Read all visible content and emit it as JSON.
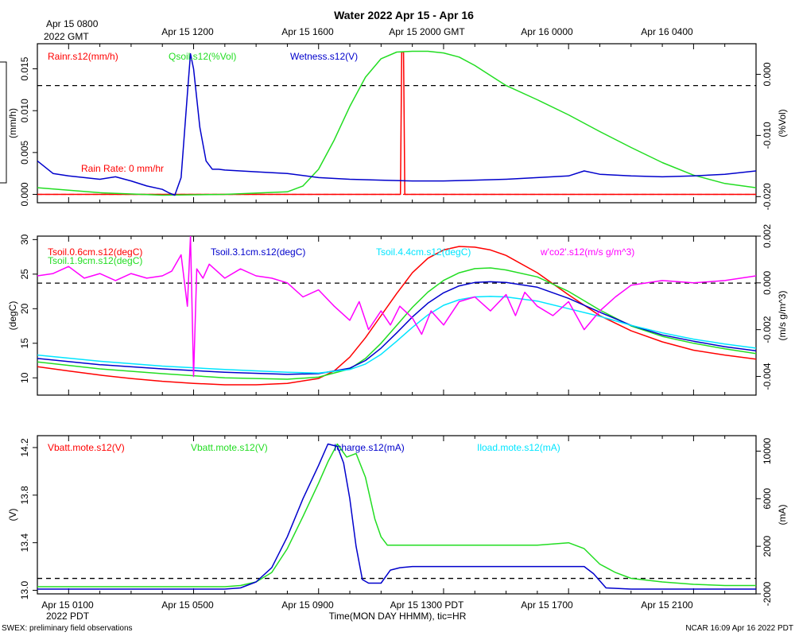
{
  "title": "Water 2022 Apr 15 - Apr 16",
  "footer": {
    "left": "SWEX: preliminary field observations",
    "right": "NCAR 16:09 Apr 16 2022 PDT",
    "xlabel": "Time(MON DAY HHMM), tic=HR",
    "year_bottom": "2022 PDT"
  },
  "top_axis": {
    "first_label": "Apr 15 0800",
    "year_label": "2022 GMT",
    "labels": [
      "Apr 15 1200",
      "Apr 15 1600",
      "Apr 15 2000 GMT",
      "Apr 16 0000",
      "Apr 16 0400"
    ]
  },
  "bottom_axis": {
    "labels": [
      "Apr 15 0100",
      "Apr 15 0500",
      "Apr 15 0900",
      "Apr 15 1300 PDT",
      "Apr 15 1700",
      "Apr 15 2100"
    ]
  },
  "colors": {
    "red": "#ff0000",
    "green": "#22dd22",
    "blue": "#0000cc",
    "cyan": "#00e5ff",
    "magenta": "#ff00ff"
  },
  "chart_data": [
    {
      "type": "line",
      "panel": "top",
      "x_unit": "hours since Apr 15 00:00 PDT",
      "xlim": [
        0,
        23
      ],
      "left_axis": {
        "label": "(mm/h)",
        "ylim": [
          -0.001,
          0.018
        ],
        "ticks": [
          0.0,
          0.005,
          0.01,
          0.015
        ],
        "tick_labels": [
          "0.000",
          "0.005",
          "0.010",
          "0.015"
        ]
      },
      "right_axis": {
        "label": "(%Vol)",
        "ylim": [
          -0.021,
          0.005
        ],
        "ticks": [
          0.0,
          -0.01,
          -0.02
        ],
        "tick_labels": [
          "0.000",
          "-0.010",
          "-0.020"
        ]
      },
      "reference_line_left": 0.013,
      "annotation": "Rain Rate: 0 mm/hr",
      "series": [
        {
          "name": "Rainr.s12(mm/h)",
          "color": "red",
          "axis": "left",
          "x": [
            0,
            11.62,
            11.66,
            11.72,
            11.76,
            23
          ],
          "values": [
            0,
            0,
            0.017,
            0.017,
            0,
            0
          ]
        },
        {
          "name": "Qsoil.s12(%Vol)",
          "color": "green",
          "axis": "left",
          "x": [
            0,
            2,
            4,
            6,
            8,
            8.5,
            9,
            9.5,
            10,
            10.5,
            11,
            11.5,
            12,
            12.5,
            13,
            13.5,
            14,
            14.5,
            15,
            16,
            17,
            18,
            19,
            20,
            21,
            22,
            23
          ],
          "values": [
            0.0008,
            0.0002,
            -0.0001,
            0.0,
            0.0003,
            0.001,
            0.003,
            0.0065,
            0.0105,
            0.014,
            0.0162,
            0.017,
            0.0171,
            0.0171,
            0.0169,
            0.0164,
            0.0154,
            0.0142,
            0.013,
            0.0113,
            0.0095,
            0.0075,
            0.0056,
            0.0038,
            0.0023,
            0.0013,
            0.0008
          ]
        },
        {
          "name": "Wetness.s12(V)",
          "color": "blue",
          "axis": "left",
          "x": [
            0,
            0.5,
            1,
            1.5,
            2,
            2.5,
            3,
            3.5,
            4,
            4.2,
            4.4,
            4.6,
            4.8,
            4.9,
            5.0,
            5.2,
            5.4,
            5.6,
            5.8,
            6.0,
            7,
            8,
            9,
            10,
            11,
            12,
            13,
            14,
            15,
            16,
            17,
            17.5,
            18,
            19,
            20,
            21,
            22,
            23
          ],
          "values": [
            0.004,
            0.0025,
            0.0022,
            0.002,
            0.0018,
            0.0021,
            0.0016,
            0.001,
            0.0006,
            0.0002,
            -0.0001,
            0.002,
            0.012,
            0.0168,
            0.015,
            0.008,
            0.004,
            0.003,
            0.003,
            0.0029,
            0.0027,
            0.0025,
            0.002,
            0.0018,
            0.0017,
            0.0016,
            0.0016,
            0.0017,
            0.0018,
            0.002,
            0.0022,
            0.0028,
            0.0024,
            0.0022,
            0.0021,
            0.0022,
            0.0024,
            0.0028
          ]
        }
      ]
    },
    {
      "type": "line",
      "panel": "middle",
      "x_unit": "hours since Apr 15 00:00 PDT",
      "xlim": [
        0,
        23
      ],
      "left_axis": {
        "label": "(degC)",
        "ylim": [
          7.5,
          30.5
        ],
        "ticks": [
          10,
          15,
          20,
          25,
          30
        ],
        "tick_labels": [
          "10",
          "15",
          "20",
          "25",
          "30"
        ]
      },
      "right_axis": {
        "label": "(m/s g/m^3)",
        "ylim": [
          -0.0048,
          0.002
        ],
        "ticks": [
          0.002,
          0.0,
          -0.002,
          -0.004
        ],
        "tick_labels": [
          "0.002",
          "0.000",
          "-0.002",
          "-0.004"
        ]
      },
      "reference_line_left": 23.7,
      "series": [
        {
          "name": "Tsoil.0.6cm.s12(degC)",
          "color": "red",
          "axis": "left",
          "x": [
            0,
            1,
            2,
            3,
            4,
            5,
            6,
            7,
            8,
            9,
            9.5,
            10,
            10.5,
            11,
            11.5,
            12,
            12.5,
            13,
            13.5,
            14,
            14.5,
            15,
            16,
            17,
            18,
            19,
            20,
            21,
            22,
            23
          ],
          "values": [
            11.6,
            11.0,
            10.4,
            9.9,
            9.5,
            9.2,
            9.0,
            9.0,
            9.2,
            9.9,
            11.0,
            13.0,
            15.8,
            19.0,
            22.2,
            25.2,
            27.3,
            28.5,
            29.0,
            28.9,
            28.5,
            27.7,
            25.2,
            22.0,
            19.0,
            16.8,
            15.2,
            14.0,
            13.3,
            12.7
          ]
        },
        {
          "name": "Tsoil.1.9cm.s12(degC)",
          "color": "green",
          "axis": "left",
          "x": [
            0,
            2,
            4,
            6,
            8,
            9,
            10,
            10.5,
            11,
            11.5,
            12,
            12.5,
            13,
            13.5,
            14,
            14.5,
            15,
            16,
            17,
            18,
            19,
            20,
            21,
            22,
            23
          ],
          "values": [
            12.3,
            11.3,
            10.6,
            10.0,
            9.8,
            10.1,
            11.3,
            12.8,
            15.0,
            17.6,
            20.2,
            22.4,
            24.1,
            25.2,
            25.8,
            25.9,
            25.6,
            24.6,
            22.5,
            19.8,
            17.5,
            16.0,
            15.0,
            14.2,
            13.5
          ]
        },
        {
          "name": "Tsoil.3.1cm.s12(degC)",
          "color": "blue",
          "axis": "left",
          "x": [
            0,
            2,
            4,
            6,
            8,
            9,
            10,
            10.5,
            11,
            11.5,
            12,
            12.5,
            13,
            13.5,
            14,
            14.5,
            15,
            16,
            17,
            18,
            19,
            20,
            21,
            22,
            23
          ],
          "values": [
            12.8,
            11.9,
            11.3,
            10.8,
            10.5,
            10.6,
            11.4,
            12.5,
            14.3,
            16.5,
            18.8,
            20.8,
            22.3,
            23.3,
            23.8,
            23.9,
            23.8,
            23.1,
            21.5,
            19.5,
            17.6,
            16.2,
            15.3,
            14.5,
            13.9
          ]
        },
        {
          "name": "Tsoil.4.4cm.s12(degC)",
          "color": "cyan",
          "axis": "left",
          "x": [
            0,
            2,
            4,
            6,
            8,
            9,
            10,
            10.5,
            11,
            11.5,
            12,
            12.5,
            13,
            13.5,
            14,
            14.5,
            15,
            16,
            17,
            18,
            19,
            20,
            21,
            22,
            23
          ],
          "values": [
            13.3,
            12.4,
            11.7,
            11.2,
            10.8,
            10.7,
            11.2,
            12.0,
            13.4,
            15.3,
            17.3,
            19.1,
            20.5,
            21.3,
            21.7,
            21.8,
            21.7,
            21.1,
            20.0,
            18.9,
            17.6,
            16.5,
            15.6,
            14.9,
            14.3
          ]
        },
        {
          "name": "w'co2'.s12(m/s g/m^3)",
          "color": "magenta",
          "axis": "right",
          "x": [
            0,
            0.5,
            1,
            1.5,
            2,
            2.5,
            3,
            3.5,
            4,
            4.3,
            4.6,
            4.8,
            4.9,
            5.0,
            5.1,
            5.3,
            5.5,
            6,
            6.5,
            7,
            7.5,
            8,
            8.5,
            9,
            9.5,
            10,
            10.3,
            10.6,
            11,
            11.3,
            11.6,
            12,
            12.3,
            12.6,
            13,
            13.5,
            14,
            14.5,
            15,
            15.3,
            15.6,
            16,
            16.5,
            17,
            17.5,
            18,
            18.5,
            19,
            20,
            21,
            22,
            23
          ],
          "values": [
            0.0003,
            0.0004,
            0.0007,
            0.0002,
            0.0004,
            0.0001,
            0.0004,
            0.0002,
            0.0003,
            0.0005,
            0.0012,
            -0.001,
            0.002,
            -0.004,
            0.0006,
            0.0002,
            0.0008,
            0.0002,
            0.0006,
            0.0003,
            0.0002,
            0.0,
            -0.0006,
            -0.0003,
            -0.001,
            -0.0016,
            -0.0008,
            -0.002,
            -0.0012,
            -0.0018,
            -0.001,
            -0.0015,
            -0.0022,
            -0.0012,
            -0.0018,
            -0.0008,
            -0.0006,
            -0.0012,
            -0.0005,
            -0.0014,
            -0.0004,
            -0.001,
            -0.0014,
            -0.0008,
            -0.002,
            -0.0012,
            -0.0006,
            -0.0001,
            0.0001,
            0.0,
            0.0001,
            0.0003
          ]
        }
      ]
    },
    {
      "type": "line",
      "panel": "bottom",
      "x_unit": "hours since Apr 15 00:00 PDT",
      "xlim": [
        0,
        23
      ],
      "left_axis": {
        "label": "(V)",
        "ylim": [
          12.97,
          14.3
        ],
        "ticks": [
          13.0,
          13.4,
          13.8,
          14.2
        ],
        "tick_labels": [
          "13.0",
          "13.4",
          "13.8",
          "14.2"
        ]
      },
      "right_axis": {
        "label": "(mA)",
        "ylim": [
          -2000,
          11300
        ],
        "ticks": [
          -2000,
          2000,
          6000,
          10000
        ],
        "tick_labels": [
          "-2000",
          "2000",
          "6000",
          "10000"
        ]
      },
      "reference_line_left": 13.1,
      "series": [
        {
          "name": "Vbatt.mote.s12(V)",
          "color": "red",
          "axis": "left",
          "x": [],
          "values": []
        },
        {
          "name": "Vbatt.mote.s12(V)",
          "color": "green",
          "axis": "left",
          "x": [
            0,
            1,
            2,
            3,
            4,
            5,
            6,
            6.5,
            7,
            7.5,
            8,
            8.5,
            9,
            9.3,
            9.6,
            9.9,
            10.2,
            10.5,
            10.8,
            11,
            11.2,
            11.5,
            12,
            13,
            14,
            15,
            16,
            17,
            17.5,
            18,
            18.5,
            19,
            20,
            21,
            22,
            23
          ],
          "values": [
            13.03,
            13.03,
            13.03,
            13.03,
            13.03,
            13.03,
            13.03,
            13.04,
            13.07,
            13.15,
            13.35,
            13.62,
            13.9,
            14.08,
            14.23,
            14.12,
            14.15,
            13.95,
            13.6,
            13.45,
            13.38,
            13.38,
            13.38,
            13.38,
            13.38,
            13.38,
            13.38,
            13.4,
            13.35,
            13.22,
            13.15,
            13.1,
            13.07,
            13.05,
            13.04,
            13.04
          ]
        },
        {
          "name": "Icharge.s12(mA)",
          "color": "blue",
          "axis": "right",
          "x": [
            0,
            1,
            2,
            3,
            4,
            5,
            6,
            6.5,
            7,
            7.5,
            8,
            8.5,
            9,
            9.3,
            9.6,
            9.8,
            10,
            10.2,
            10.4,
            10.6,
            11,
            11.3,
            11.6,
            12,
            13,
            14,
            15,
            16,
            17,
            17.5,
            17.8,
            18.2,
            19,
            20,
            21,
            22,
            23
          ],
          "values": [
            -1600,
            -1600,
            -1600,
            -1600,
            -1600,
            -1600,
            -1600,
            -1500,
            -1000,
            200,
            2800,
            6000,
            8800,
            10600,
            10400,
            9000,
            6000,
            2000,
            -800,
            -1100,
            -1100,
            0,
            200,
            300,
            300,
            300,
            300,
            300,
            300,
            300,
            -300,
            -1500,
            -1600,
            -1600,
            -1600,
            -1600,
            -1600
          ]
        },
        {
          "name": "Iload.mote.s12(mA)",
          "color": "cyan",
          "axis": "right",
          "x": [],
          "values": []
        }
      ]
    }
  ]
}
